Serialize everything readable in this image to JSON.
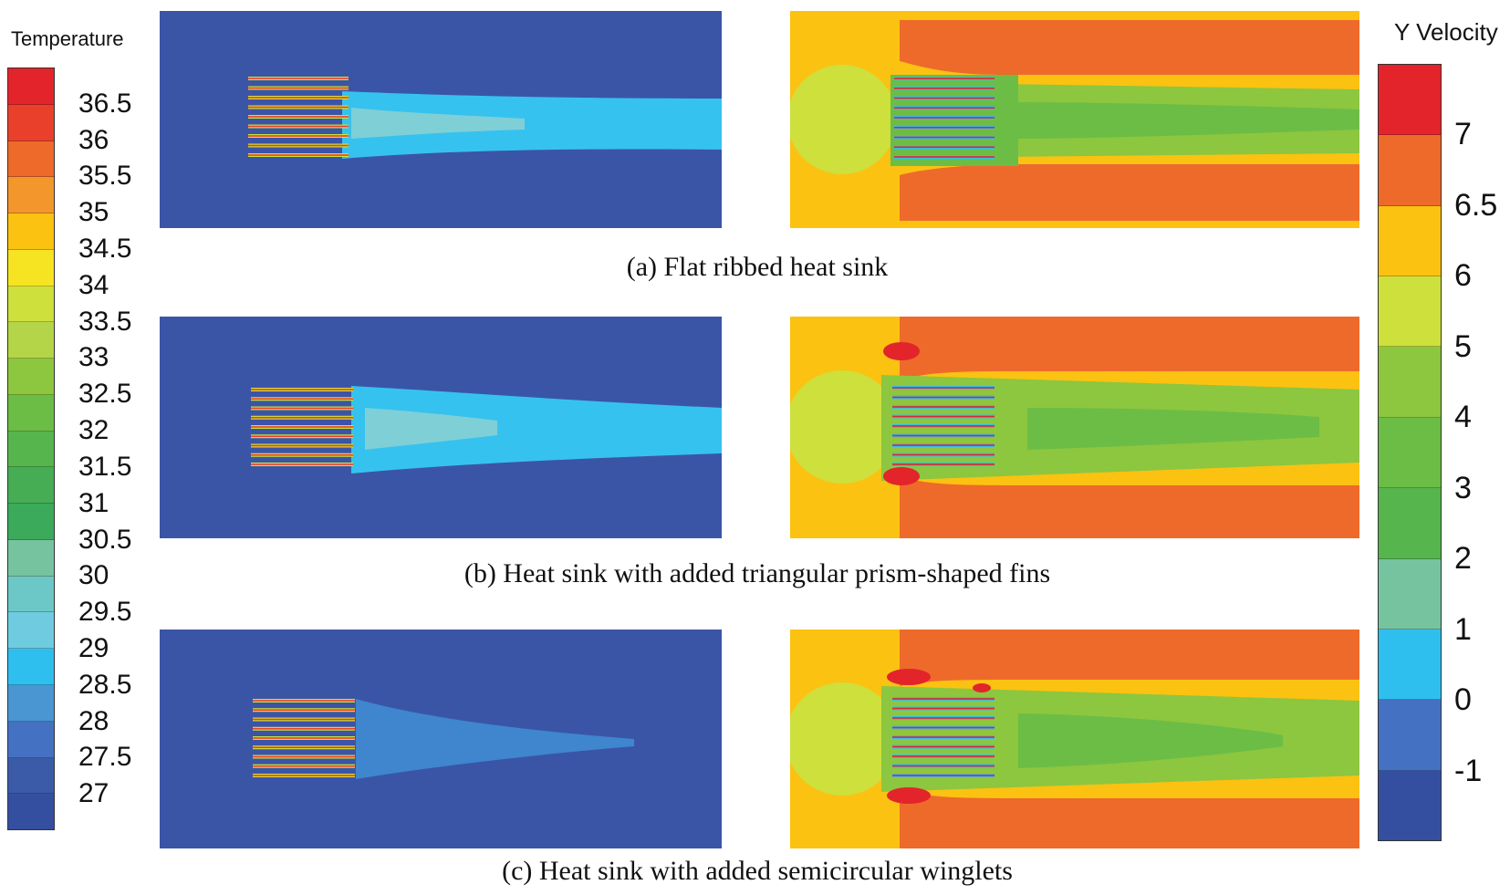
{
  "temperature_legend": {
    "title": "Temperature",
    "ticks": [
      "36.5",
      "36",
      "35.5",
      "35",
      "34.5",
      "34",
      "33.5",
      "33",
      "32.5",
      "32",
      "31.5",
      "31",
      "30.5",
      "30",
      "29.5",
      "29",
      "28.5",
      "28",
      "27.5",
      "27"
    ],
    "colors": [
      "#e3242b",
      "#e8402a",
      "#ee6a2a",
      "#f3962c",
      "#fbc212",
      "#f6e423",
      "#cde03c",
      "#b5d548",
      "#8dc63f",
      "#6cbd45",
      "#56b54c",
      "#47ad55",
      "#3caa5b",
      "#76c3a0",
      "#6cc8c6",
      "#6fcce0",
      "#2fbfee",
      "#4a96d2",
      "#4471c1",
      "#3b5ba8",
      "#354fa0"
    ]
  },
  "velocity_legend": {
    "title": "Y Velocity",
    "ticks": [
      "7",
      "6.5",
      "6",
      "5",
      "4",
      "3",
      "2",
      "1",
      "0",
      "-1"
    ],
    "colors": [
      "#e3242b",
      "#ee6a2a",
      "#fbc212",
      "#cde03c",
      "#8dc63f",
      "#6cbd45",
      "#56b54c",
      "#76c3a0",
      "#2fbfee",
      "#4471c1",
      "#354fa0"
    ]
  },
  "captions": {
    "a": "(a) Flat ribbed heat sink",
    "b": "(b) Heat sink with added triangular prism-shaped fins",
    "c": "(c) Heat sink with added semicircular winglets"
  },
  "colors": {
    "cold": "#3b55a6",
    "plume_light": "#36c2ee",
    "plume_core": "#7fcfd7",
    "plume_dim": "#3f86cf",
    "vel_orange": "#ee6a2a",
    "vel_yellow": "#fbc212",
    "vel_lime": "#cde03c",
    "vel_green": "#8dc63f",
    "vel_dgreen": "#6cbd45",
    "vel_red": "#e3242b"
  }
}
